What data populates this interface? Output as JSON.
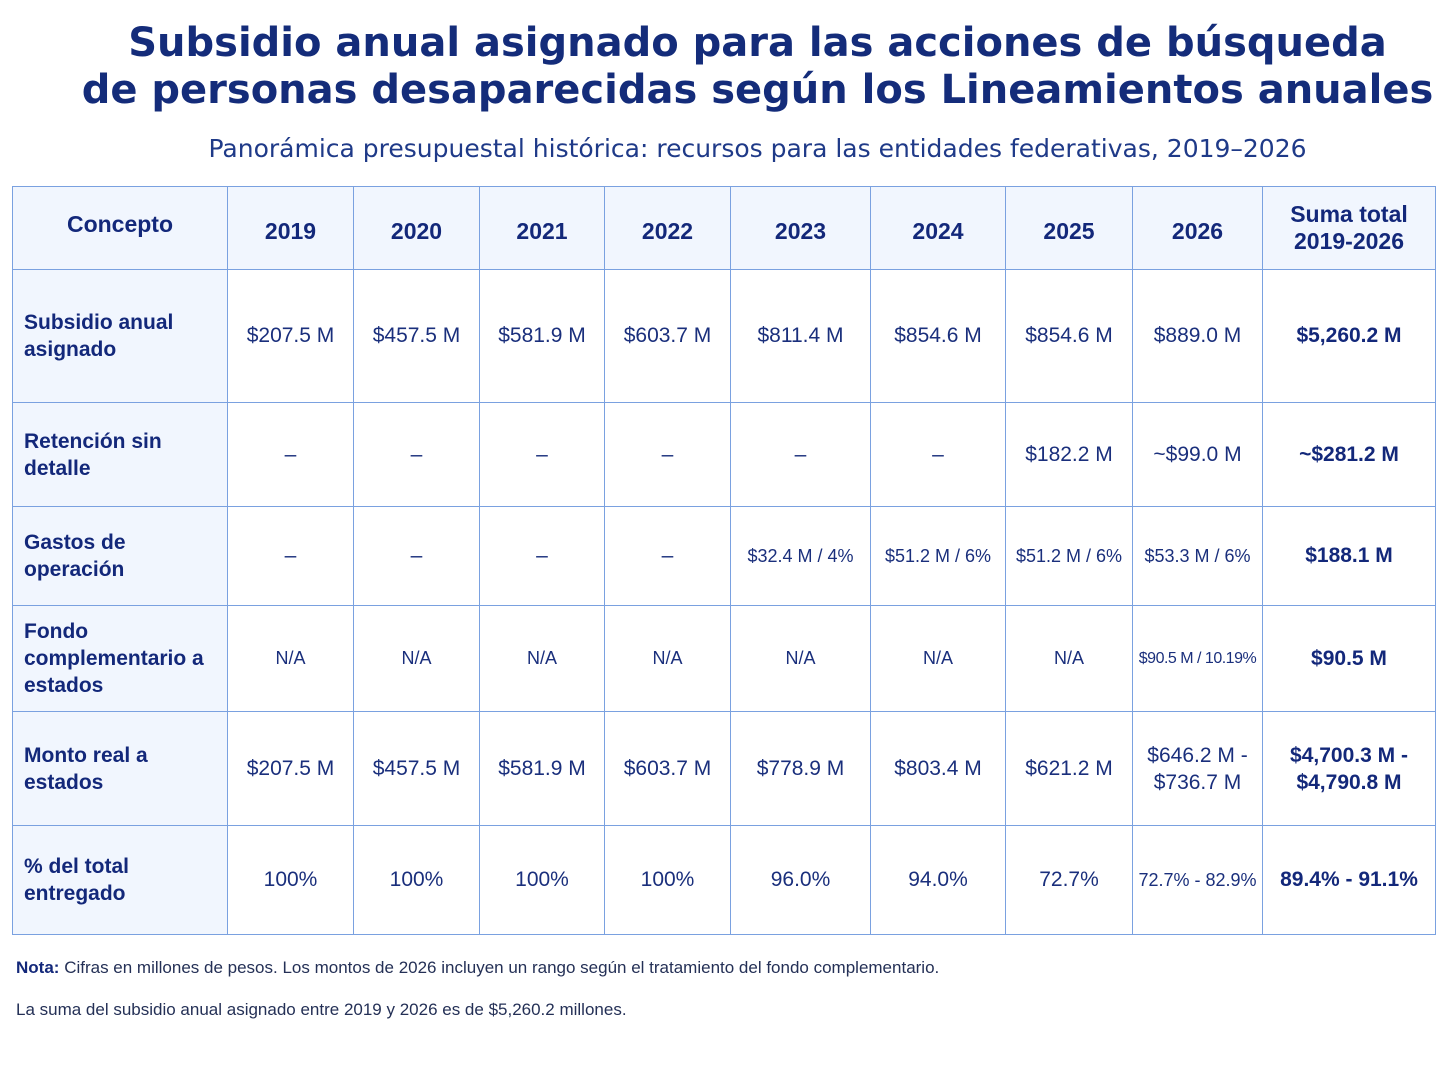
{
  "title": {
    "line1": "Subsidio anual asignado para las acciones de búsqueda",
    "line2": "de personas desaparecidas según los Lineamientos anuales"
  },
  "subtitle": "Panorámica presupuestal histórica: recursos para las entidades federativas, 2019–2026",
  "table": {
    "headers": {
      "concept": "Concepto",
      "years": [
        "2019",
        "2020",
        "2021",
        "2022",
        "2023",
        "2024",
        "2025",
        "2026"
      ],
      "total_line1": "Suma total",
      "total_line2": "2019-2026"
    },
    "rows": [
      {
        "label": "Subsidio anual asignado",
        "values": [
          "$207.5 M",
          "$457.5 M",
          "$581.9 M",
          "$603.7 M",
          "$811.4 M",
          "$854.6 M",
          "$854.6 M",
          "$889.0 M"
        ],
        "total": "$5,260.2 M"
      },
      {
        "label": "Retención sin detalle",
        "values": [
          "–",
          "–",
          "–",
          "–",
          "–",
          "–",
          "$182.2 M",
          "~$99.0 M"
        ],
        "total": "~$281.2 M"
      },
      {
        "label": "Gastos de operación",
        "values": [
          "–",
          "–",
          "–",
          "–",
          "$32.4 M / 4%",
          "$51.2 M / 6%",
          "$51.2 M / 6%",
          "$53.3 M / 6%"
        ],
        "total": "$188.1 M"
      },
      {
        "label": "Fondo complementario a estados",
        "values": [
          "N/A",
          "N/A",
          "N/A",
          "N/A",
          "N/A",
          "N/A",
          "N/A",
          "$90.5 M / 10.19%"
        ],
        "total": "$90.5 M"
      },
      {
        "label": "Monto real a estados",
        "values": [
          "$207.5 M",
          "$457.5 M",
          "$581.9 M",
          "$603.7 M",
          "$778.9 M",
          "$803.4 M",
          "$621.2 M",
          "$646.2 M - $736.7 M"
        ],
        "total": "$4,700.3 M - $4,790.8 M"
      },
      {
        "label": "% del total entregado",
        "values": [
          "100%",
          "100%",
          "100%",
          "100%",
          "96.0%",
          "94.0%",
          "72.7%",
          "72.7% - 82.9%"
        ],
        "total": "89.4% - 91.1%"
      }
    ]
  },
  "notes": {
    "note_label": "Nota:",
    "note_text": "Cifras en millones de pesos. Los montos de 2026 incluyen un rango según el tratamiento del fondo complementario.",
    "sum_text": "La suma del subsidio anual asignado entre 2019 y 2026 es de $5,260.2 millones."
  },
  "colors": {
    "title": "#142c7a",
    "header_bg": "#f1f6fe",
    "border": "#7aa1e0",
    "text": "#1a2f7c"
  }
}
